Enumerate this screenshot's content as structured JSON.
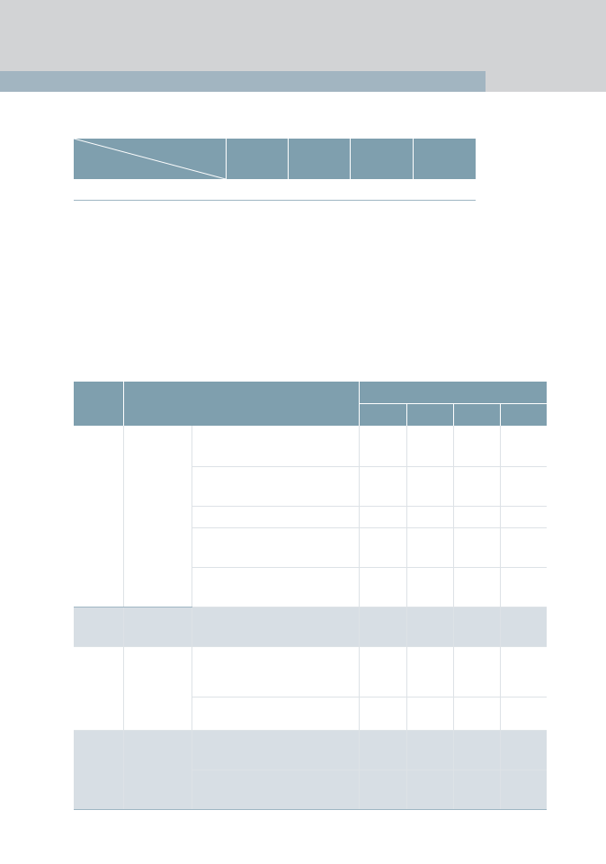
{
  "page": {
    "title": ""
  },
  "summary_table": {
    "columns": [
      "",
      "",
      "",
      ""
    ],
    "row": [
      "",
      "",
      "",
      "",
      ""
    ]
  },
  "detail_table": {
    "headers": {
      "col1": "",
      "col2": "",
      "group": "",
      "sub": [
        "",
        "",
        "",
        ""
      ]
    },
    "rows": [
      [
        "",
        "",
        "",
        "",
        "",
        "",
        ""
      ]
    ]
  }
}
